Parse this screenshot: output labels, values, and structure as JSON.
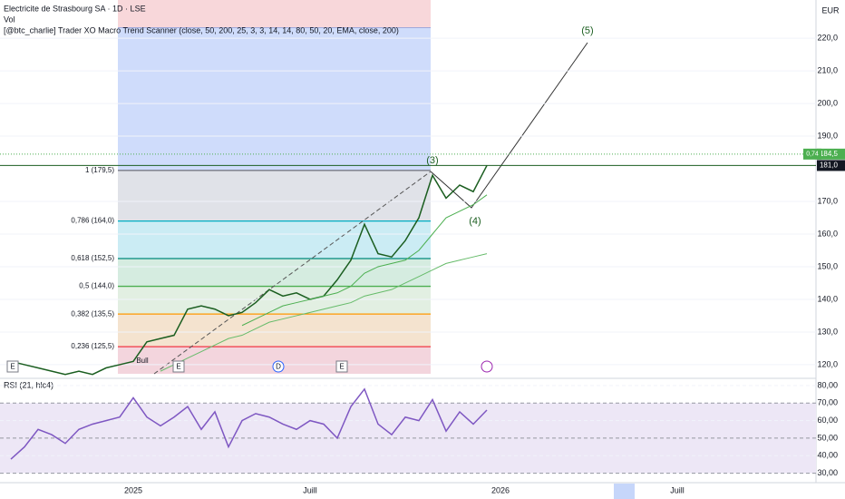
{
  "header": {
    "title": "Electricite de Strasbourg SA · 1D · LSE",
    "volume": "Vol",
    "indicator": "[@btc_charlie] Trader XO Macro Trend Scanner (close, 50, 200, 25, 3, 3, 14, 14, 80, 50, 20, EMA, close, 200)",
    "currency": "EUR"
  },
  "chart_data": [
    {
      "type": "line",
      "ylim": [
        117.2,
        231.7
      ],
      "yticks": [
        {
          "value": 120,
          "label": "120,0"
        },
        {
          "value": 130,
          "label": "130,0"
        },
        {
          "value": 140,
          "label": "140,0"
        },
        {
          "value": 150,
          "label": "150,0"
        },
        {
          "value": 160,
          "label": "160,0"
        },
        {
          "value": 170,
          "label": "170,0"
        },
        {
          "value": 190,
          "label": "190,0"
        },
        {
          "value": 200,
          "label": "200,0"
        },
        {
          "value": 210,
          "label": "210,0"
        },
        {
          "value": 220,
          "label": "220,0"
        }
      ],
      "last_price": {
        "value": 184.5,
        "label": "184,5"
      },
      "ref_price": {
        "value": 181,
        "label": "181,0"
      },
      "countdown": "0,74",
      "series": [
        {
          "color": "#1b5e20",
          "values": [
            121,
            120,
            119,
            118,
            117,
            118,
            117,
            119,
            120,
            121,
            127,
            128,
            129,
            137,
            138,
            137,
            135,
            136,
            139,
            143,
            141,
            142,
            140,
            141,
            146,
            152,
            163,
            154,
            153,
            158,
            165,
            178,
            171,
            175,
            173,
            181,
            null,
            null,
            null,
            null,
            null,
            null,
            null,
            null,
            null,
            null,
            null,
            null,
            null,
            null,
            null,
            null,
            null,
            null,
            null,
            null,
            null,
            null,
            null,
            null
          ]
        },
        {
          "color": "#4caf50",
          "values": [
            null,
            null,
            null,
            null,
            null,
            null,
            null,
            null,
            null,
            null,
            null,
            null,
            null,
            null,
            null,
            null,
            null,
            132,
            134,
            136,
            138,
            139,
            140,
            141,
            142,
            144,
            148,
            150,
            151,
            152,
            155,
            160,
            165,
            167,
            169,
            172,
            null,
            null,
            null,
            null,
            null,
            null,
            null,
            null,
            null,
            null,
            null,
            null,
            null,
            null,
            null,
            null,
            null,
            null,
            null,
            null,
            null,
            null,
            null,
            null
          ]
        },
        {
          "color": "#66bb6a",
          "values": [
            null,
            null,
            null,
            null,
            null,
            null,
            null,
            null,
            null,
            null,
            null,
            118,
            120,
            122,
            124,
            126,
            128,
            129,
            131,
            133,
            134,
            135,
            136,
            137,
            138,
            139,
            141,
            142,
            143,
            145,
            147,
            149,
            151,
            152,
            153,
            154,
            null,
            null,
            null,
            null,
            null,
            null,
            null,
            null,
            null,
            null,
            null,
            null,
            null,
            null,
            null,
            null,
            null,
            null,
            null,
            null,
            null,
            null,
            null,
            null
          ]
        }
      ],
      "fib_levels": [
        {
          "label": "1 (179,5)",
          "value": 179.5,
          "color": "#787b86"
        },
        {
          "label": "0,786 (164,0)",
          "value": 164.0,
          "color": "#00acc1"
        },
        {
          "label": "0,618 (152,5)",
          "value": 152.5,
          "color": "#00897b"
        },
        {
          "label": "0,5 (144,0)",
          "value": 144.0,
          "color": "#4caf50"
        },
        {
          "label": "0,382 (135,5)",
          "value": 135.5,
          "color": "#ff9800"
        },
        {
          "label": "0,236 (125,5)",
          "value": 125.5,
          "color": "#f23645"
        }
      ],
      "annotations": [
        "(3)",
        "(4)",
        "(5)",
        "Bull"
      ],
      "markers": [
        "E",
        "E",
        "D",
        "E"
      ]
    },
    {
      "type": "line",
      "title": "RSI (21, hlc4)",
      "ylim": [
        24.6,
        83.6
      ],
      "yticks": [
        {
          "value": 30,
          "label": "30,00"
        },
        {
          "value": 40,
          "label": "40,00"
        },
        {
          "value": 50,
          "label": "50,00"
        },
        {
          "value": 60,
          "label": "60,00"
        },
        {
          "value": 70,
          "label": "70,00"
        },
        {
          "value": 80,
          "label": "80,00"
        }
      ],
      "categories": [
        null,
        null,
        null,
        null,
        null,
        null,
        null,
        null,
        null,
        "2025",
        null,
        null,
        null,
        null,
        null,
        null,
        null,
        null,
        null,
        null,
        null,
        null,
        "Juill",
        null,
        null,
        null,
        null,
        null,
        null,
        null,
        null,
        null,
        null,
        null,
        null,
        null,
        "2026",
        null,
        null,
        null,
        null,
        null,
        null,
        null,
        null,
        null,
        null,
        null,
        null,
        "Juill",
        null,
        null,
        null,
        null,
        null,
        null,
        null,
        null,
        null,
        null
      ],
      "series": [
        {
          "color": "#7e57c2",
          "values": [
            38,
            45,
            55,
            52,
            47,
            55,
            58,
            60,
            62,
            73,
            62,
            57,
            62,
            68,
            55,
            65,
            45,
            60,
            64,
            62,
            58,
            55,
            60,
            58,
            50,
            68,
            78,
            58,
            52,
            62,
            60,
            72,
            54,
            65,
            58,
            66,
            null,
            null,
            null,
            null,
            null,
            null,
            null,
            null,
            null,
            null,
            null,
            null,
            null,
            null,
            null,
            null,
            null,
            null,
            null,
            null,
            null,
            null,
            null,
            null
          ]
        }
      ]
    }
  ]
}
